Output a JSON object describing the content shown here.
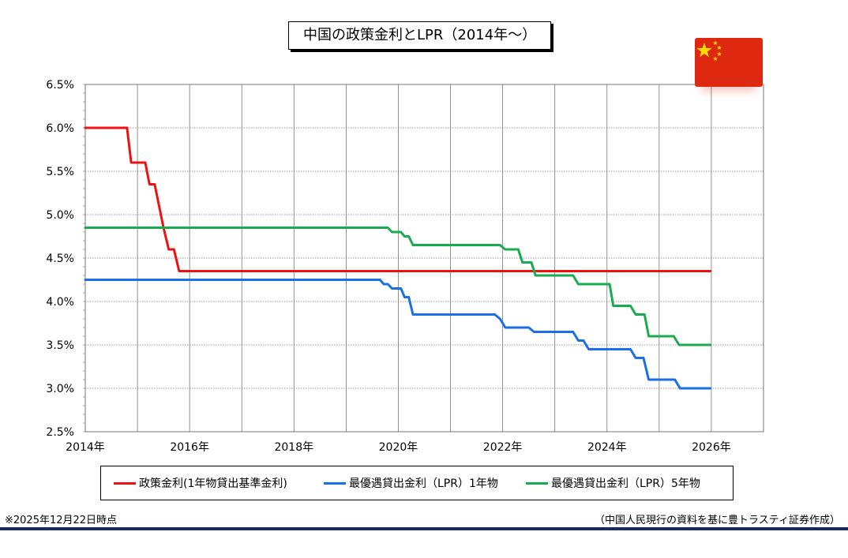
{
  "chart_data": {
    "type": "line",
    "title": "中国の政策金利とLPR（2014年～）",
    "xlabel": "",
    "ylabel": "",
    "xlim": [
      2014.0,
      2027.0
    ],
    "ylim": [
      2.5,
      6.5
    ],
    "x_ticks": [
      2014,
      2016,
      2018,
      2020,
      2022,
      2024,
      2026
    ],
    "x_tick_labels": [
      "2014年",
      "2016年",
      "2018年",
      "2020年",
      "2022年",
      "2024年",
      "2026年"
    ],
    "y_ticks": [
      2.5,
      3.0,
      3.5,
      4.0,
      4.5,
      5.0,
      5.5,
      6.0,
      6.5
    ],
    "y_tick_labels": [
      "2.5%",
      "3.0%",
      "3.5%",
      "4.0%",
      "4.5%",
      "5.0%",
      "5.5%",
      "6.0%",
      "6.5%"
    ],
    "grid": true,
    "legend_position": "bottom",
    "series": [
      {
        "name": "政策金利(1年物貸出基準金利)",
        "color": "#ee1111",
        "points": [
          [
            2014.0,
            6.0
          ],
          [
            2014.8,
            6.0
          ],
          [
            2014.88,
            5.6
          ],
          [
            2015.15,
            5.6
          ],
          [
            2015.23,
            5.35
          ],
          [
            2015.33,
            5.35
          ],
          [
            2015.5,
            4.85
          ],
          [
            2015.6,
            4.6
          ],
          [
            2015.7,
            4.6
          ],
          [
            2015.8,
            4.35
          ],
          [
            2025.98,
            4.35
          ]
        ]
      },
      {
        "name": "最優遇貸出金利（LPR）1年物",
        "color": "#1a6ee8",
        "points": [
          [
            2014.0,
            4.25
          ],
          [
            2019.65,
            4.25
          ],
          [
            2019.72,
            4.2
          ],
          [
            2019.8,
            4.2
          ],
          [
            2019.88,
            4.15
          ],
          [
            2020.05,
            4.15
          ],
          [
            2020.12,
            4.05
          ],
          [
            2020.2,
            4.05
          ],
          [
            2020.28,
            3.85
          ],
          [
            2021.85,
            3.85
          ],
          [
            2021.95,
            3.8
          ],
          [
            2022.05,
            3.7
          ],
          [
            2022.5,
            3.7
          ],
          [
            2022.6,
            3.65
          ],
          [
            2023.35,
            3.65
          ],
          [
            2023.45,
            3.55
          ],
          [
            2023.55,
            3.55
          ],
          [
            2023.65,
            3.45
          ],
          [
            2024.45,
            3.45
          ],
          [
            2024.55,
            3.35
          ],
          [
            2024.7,
            3.35
          ],
          [
            2024.8,
            3.1
          ],
          [
            2025.3,
            3.1
          ],
          [
            2025.4,
            3.0
          ],
          [
            2025.98,
            3.0
          ]
        ]
      },
      {
        "name": "最優遇貸出金利（LPR）5年物",
        "color": "#1aab4e",
        "points": [
          [
            2014.0,
            4.85
          ],
          [
            2019.8,
            4.85
          ],
          [
            2019.88,
            4.8
          ],
          [
            2020.05,
            4.8
          ],
          [
            2020.12,
            4.75
          ],
          [
            2020.2,
            4.75
          ],
          [
            2020.28,
            4.65
          ],
          [
            2021.95,
            4.65
          ],
          [
            2022.05,
            4.6
          ],
          [
            2022.3,
            4.6
          ],
          [
            2022.38,
            4.45
          ],
          [
            2022.55,
            4.45
          ],
          [
            2022.63,
            4.3
          ],
          [
            2023.35,
            4.3
          ],
          [
            2023.45,
            4.2
          ],
          [
            2024.05,
            4.2
          ],
          [
            2024.12,
            3.95
          ],
          [
            2024.45,
            3.95
          ],
          [
            2024.55,
            3.85
          ],
          [
            2024.72,
            3.85
          ],
          [
            2024.8,
            3.6
          ],
          [
            2025.28,
            3.6
          ],
          [
            2025.38,
            3.5
          ],
          [
            2025.98,
            3.5
          ]
        ]
      }
    ]
  },
  "footnote": "※2025年12月22日時点",
  "source": "（中国人民現行の資料を基に豊トラスティ証券作成）",
  "flag_icon": "china-flag-icon",
  "colors": {
    "accent_rule": "#1a2a5e",
    "grid": "#777777",
    "flag_red": "#de2910",
    "flag_star": "#ffde00"
  }
}
